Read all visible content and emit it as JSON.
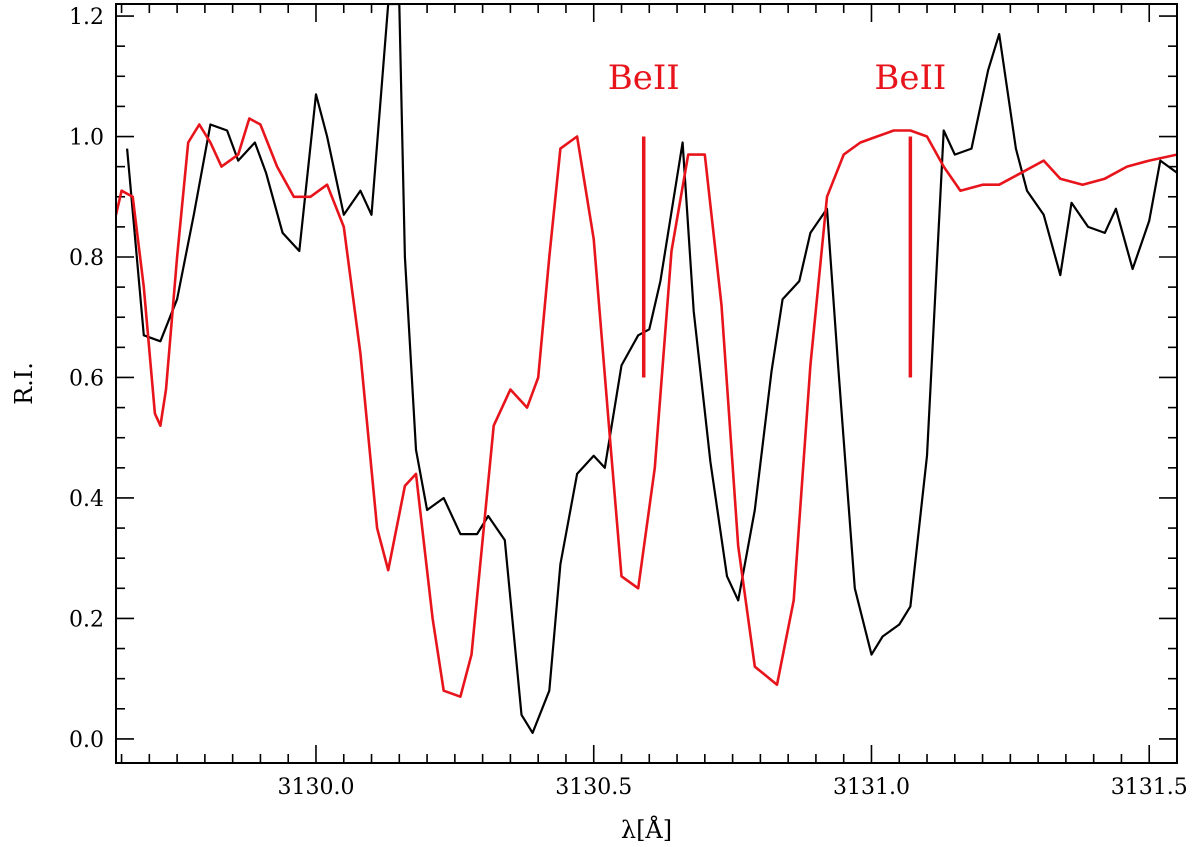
{
  "chart_data": {
    "type": "line",
    "title": "",
    "xlabel": "λ[Å]",
    "ylabel": "R.I.",
    "xlim": [
      3129.64,
      3131.55
    ],
    "ylim": [
      -0.04,
      1.22
    ],
    "xticks_major": [
      3130.0,
      3130.5,
      3131.0,
      3131.5
    ],
    "xtick_labels": [
      "3130.0",
      "3130.5",
      "3131.0",
      "3131.5"
    ],
    "yticks_major": [
      0.0,
      0.2,
      0.4,
      0.6,
      0.8,
      1.0,
      1.2
    ],
    "ytick_labels": [
      "0.0",
      "0.2",
      "0.4",
      "0.6",
      "0.8",
      "1.0",
      "1.2"
    ],
    "grid": false,
    "colors": {
      "observed": "#000000",
      "synthetic": "#e8141b",
      "annotation": "#e8141b"
    },
    "series": [
      {
        "x": [
          3129.66,
          3129.69,
          3129.72,
          3129.75,
          3129.78,
          3129.81,
          3129.84,
          3129.86,
          3129.89,
          3129.91,
          3129.94,
          3129.97,
          3130.0,
          3130.02,
          3130.05,
          3130.08,
          3130.1,
          3130.13,
          3130.15,
          3130.16,
          3130.18,
          3130.2,
          3130.23,
          3130.26,
          3130.29,
          3130.31,
          3130.34,
          3130.37,
          3130.39,
          3130.42,
          3130.44,
          3130.47,
          3130.5,
          3130.52,
          3130.55,
          3130.58,
          3130.6,
          3130.62,
          3130.66,
          3130.68,
          3130.71,
          3130.74,
          3130.76,
          3130.79,
          3130.82,
          3130.84,
          3130.87,
          3130.89,
          3130.92,
          3130.94,
          3130.97,
          3131.0,
          3131.02,
          3131.05,
          3131.07,
          3131.1,
          3131.13,
          3131.15,
          3131.18,
          3131.21,
          3131.23,
          3131.26,
          3131.28,
          3131.31,
          3131.34,
          3131.36,
          3131.39,
          3131.42,
          3131.44,
          3131.47,
          3131.5,
          3131.52,
          3131.55
        ],
        "y": [
          0.98,
          0.67,
          0.66,
          0.73,
          0.87,
          1.02,
          1.01,
          0.96,
          0.99,
          0.94,
          0.84,
          0.81,
          1.07,
          1.0,
          0.87,
          0.91,
          0.87,
          1.22,
          1.22,
          0.8,
          0.48,
          0.38,
          0.4,
          0.34,
          0.34,
          0.37,
          0.33,
          0.04,
          0.01,
          0.08,
          0.29,
          0.44,
          0.47,
          0.45,
          0.62,
          0.67,
          0.68,
          0.76,
          0.99,
          0.71,
          0.46,
          0.27,
          0.23,
          0.38,
          0.61,
          0.73,
          0.76,
          0.84,
          0.88,
          0.62,
          0.25,
          0.14,
          0.17,
          0.19,
          0.22,
          0.47,
          1.01,
          0.97,
          0.98,
          1.11,
          1.17,
          0.98,
          0.91,
          0.87,
          0.77,
          0.89,
          0.85,
          0.84,
          0.88,
          0.78,
          0.86,
          0.96,
          0.94
        ]
      },
      {
        "x": [
          3129.64,
          3129.65,
          3129.67,
          3129.69,
          3129.71,
          3129.72,
          3129.73,
          3129.75,
          3129.77,
          3129.79,
          3129.81,
          3129.83,
          3129.86,
          3129.88,
          3129.9,
          3129.93,
          3129.96,
          3129.99,
          3130.02,
          3130.05,
          3130.08,
          3130.11,
          3130.13,
          3130.16,
          3130.18,
          3130.19,
          3130.21,
          3130.23,
          3130.26,
          3130.28,
          3130.3,
          3130.32,
          3130.35,
          3130.38,
          3130.4,
          3130.42,
          3130.44,
          3130.47,
          3130.5,
          3130.53,
          3130.55,
          3130.58,
          3130.61,
          3130.64,
          3130.67,
          3130.7,
          3130.73,
          3130.76,
          3130.79,
          3130.83,
          3130.86,
          3130.89,
          3130.92,
          3130.95,
          3130.98,
          3131.01,
          3131.04,
          3131.07,
          3131.1,
          3131.13,
          3131.16,
          3131.2,
          3131.23,
          3131.27,
          3131.31,
          3131.34,
          3131.38,
          3131.42,
          3131.46,
          3131.5,
          3131.55
        ],
        "y": [
          0.87,
          0.91,
          0.9,
          0.75,
          0.54,
          0.52,
          0.58,
          0.8,
          0.99,
          1.02,
          0.99,
          0.95,
          0.97,
          1.03,
          1.02,
          0.95,
          0.9,
          0.9,
          0.92,
          0.85,
          0.64,
          0.35,
          0.28,
          0.42,
          0.44,
          0.36,
          0.2,
          0.08,
          0.07,
          0.14,
          0.33,
          0.52,
          0.58,
          0.55,
          0.6,
          0.8,
          0.98,
          1.0,
          0.83,
          0.49,
          0.27,
          0.25,
          0.45,
          0.81,
          0.97,
          0.97,
          0.72,
          0.32,
          0.12,
          0.09,
          0.23,
          0.62,
          0.9,
          0.97,
          0.99,
          1.0,
          1.01,
          1.01,
          1.0,
          0.95,
          0.91,
          0.92,
          0.92,
          0.94,
          0.96,
          0.93,
          0.92,
          0.93,
          0.95,
          0.96,
          0.97
        ]
      }
    ],
    "annotations": [
      {
        "text": "BeII",
        "x": 3130.59,
        "y_top": 1.0,
        "y_bottom": 0.6
      },
      {
        "text": "BeII",
        "x": 3131.07,
        "y_top": 1.0,
        "y_bottom": 0.6
      }
    ]
  }
}
